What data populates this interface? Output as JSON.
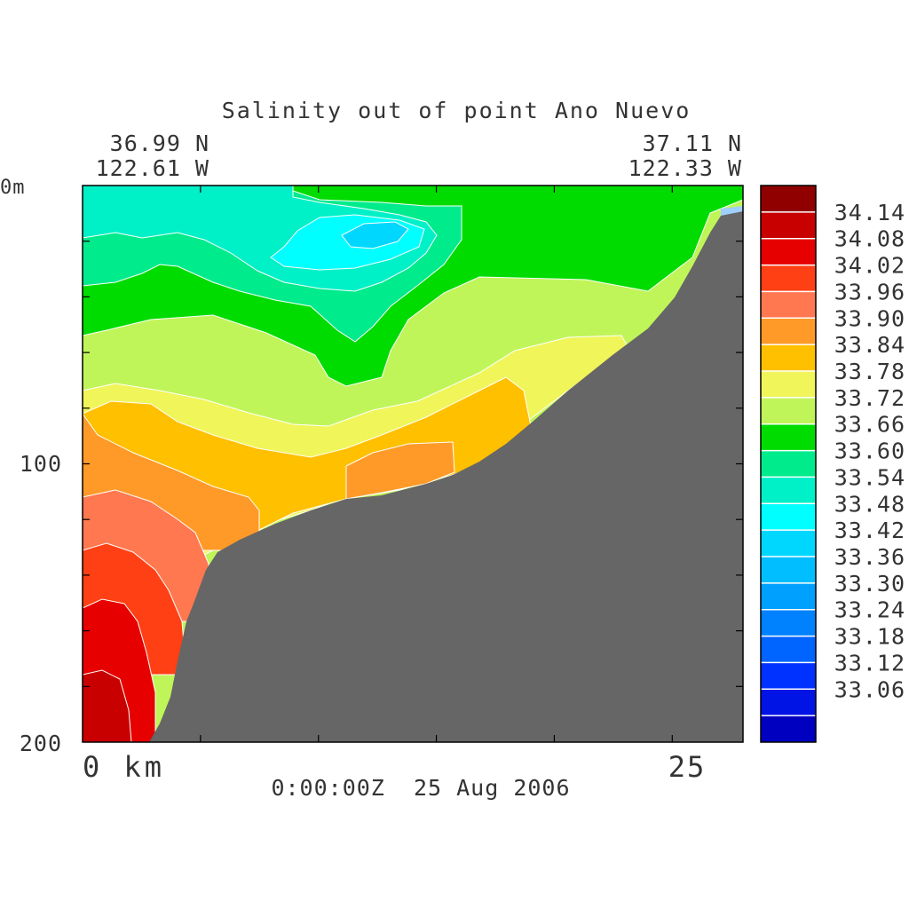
{
  "chart_data": {
    "type": "heatmap",
    "title": "Salinity out of point Ano Nuevo",
    "start_coords": {
      "lat": "36.99 N",
      "lon": "122.61 W"
    },
    "end_coords": {
      "lat": "37.11 N",
      "lon": "122.33 W"
    },
    "timestamp": "0:00:00Z  25 Aug 2006",
    "x_axis": {
      "start_label": "0 km",
      "end_label": "25",
      "range_km": [
        0,
        28
      ],
      "ticks_km": [
        0,
        5,
        10,
        15,
        20,
        25
      ]
    },
    "y_axis": {
      "top_label": "0m",
      "ticks": [
        {
          "value": 100,
          "label": "100"
        },
        {
          "value": 200,
          "label": "200"
        }
      ],
      "range_m": [
        0,
        200
      ],
      "inverted": true
    },
    "colorbar": {
      "levels": [
        {
          "value": null,
          "label": "",
          "color": "#900000"
        },
        {
          "value": 34.14,
          "label": "34.14",
          "color": "#c80000"
        },
        {
          "value": 34.08,
          "label": "34.08",
          "color": "#e60000"
        },
        {
          "value": 34.02,
          "label": "34.02",
          "color": "#ff4014"
        },
        {
          "value": 33.96,
          "label": "33.96",
          "color": "#ff7850"
        },
        {
          "value": 33.9,
          "label": "33.90",
          "color": "#ff9a28"
        },
        {
          "value": 33.84,
          "label": "33.84",
          "color": "#ffc000"
        },
        {
          "value": 33.78,
          "label": "33.78",
          "color": "#f0f55a"
        },
        {
          "value": 33.72,
          "label": "33.72",
          "color": "#c0f55a"
        },
        {
          "value": 33.66,
          "label": "33.66",
          "color": "#00dc00"
        },
        {
          "value": 33.6,
          "label": "33.60",
          "color": "#00eb8c"
        },
        {
          "value": 33.54,
          "label": "33.54",
          "color": "#00f0c8"
        },
        {
          "value": 33.48,
          "label": "33.48",
          "color": "#00ffff"
        },
        {
          "value": 33.42,
          "label": "33.42",
          "color": "#00d7ff"
        },
        {
          "value": 33.36,
          "label": "33.36",
          "color": "#00beff"
        },
        {
          "value": 33.3,
          "label": "33.30",
          "color": "#00a0ff"
        },
        {
          "value": 33.24,
          "label": "33.24",
          "color": "#0082ff"
        },
        {
          "value": 33.18,
          "label": "33.18",
          "color": "#0064ff"
        },
        {
          "value": 33.12,
          "label": "33.12",
          "color": "#0032ff"
        },
        {
          "value": 33.06,
          "label": "33.06",
          "color": "#0014e6"
        },
        {
          "value": null,
          "label": "",
          "color": "#0000c0"
        }
      ]
    },
    "bathymetry_color": "#666666",
    "grid": false
  }
}
